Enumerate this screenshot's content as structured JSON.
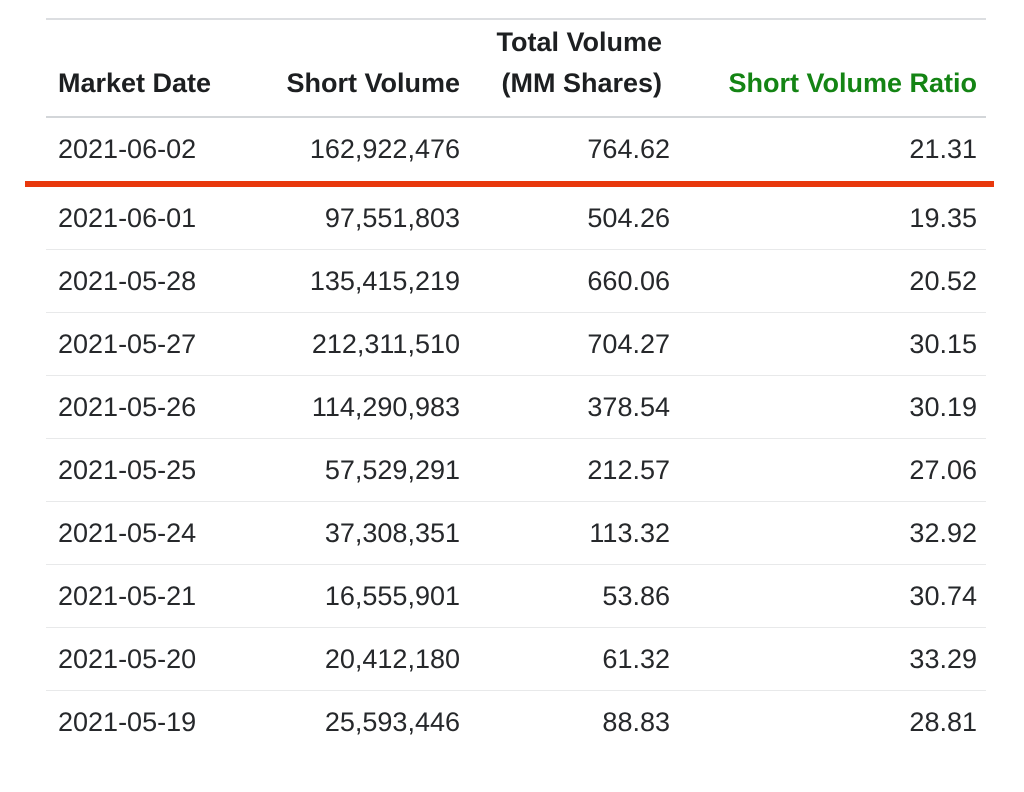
{
  "table": {
    "header": {
      "market_date": "Market Date",
      "short_volume": "Short Volume",
      "total_volume_line1": "Total Volume",
      "total_volume_line2": "(MM Shares)",
      "short_volume_ratio": "Short Volume Ratio"
    },
    "rows": [
      {
        "date": "2021-06-02",
        "short_volume": "162,922,476",
        "total_volume": "764.62",
        "ratio": "21.31"
      },
      {
        "date": "2021-06-01",
        "short_volume": "97,551,803",
        "total_volume": "504.26",
        "ratio": "19.35"
      },
      {
        "date": "2021-05-28",
        "short_volume": "135,415,219",
        "total_volume": "660.06",
        "ratio": "20.52"
      },
      {
        "date": "2021-05-27",
        "short_volume": "212,311,510",
        "total_volume": "704.27",
        "ratio": "30.15"
      },
      {
        "date": "2021-05-26",
        "short_volume": "114,290,983",
        "total_volume": "378.54",
        "ratio": "30.19"
      },
      {
        "date": "2021-05-25",
        "short_volume": "57,529,291",
        "total_volume": "212.57",
        "ratio": "27.06"
      },
      {
        "date": "2021-05-24",
        "short_volume": "37,308,351",
        "total_volume": "113.32",
        "ratio": "32.92"
      },
      {
        "date": "2021-05-21",
        "short_volume": "16,555,901",
        "total_volume": "53.86",
        "ratio": "30.74"
      },
      {
        "date": "2021-05-20",
        "short_volume": "20,412,180",
        "total_volume": "61.32",
        "ratio": "33.29"
      },
      {
        "date": "2021-05-19",
        "short_volume": "25,593,446",
        "total_volume": "88.83",
        "ratio": "28.81"
      }
    ],
    "colors": {
      "ratio_header_green": "#148414",
      "highlight_divider_red": "#e8380c"
    }
  }
}
